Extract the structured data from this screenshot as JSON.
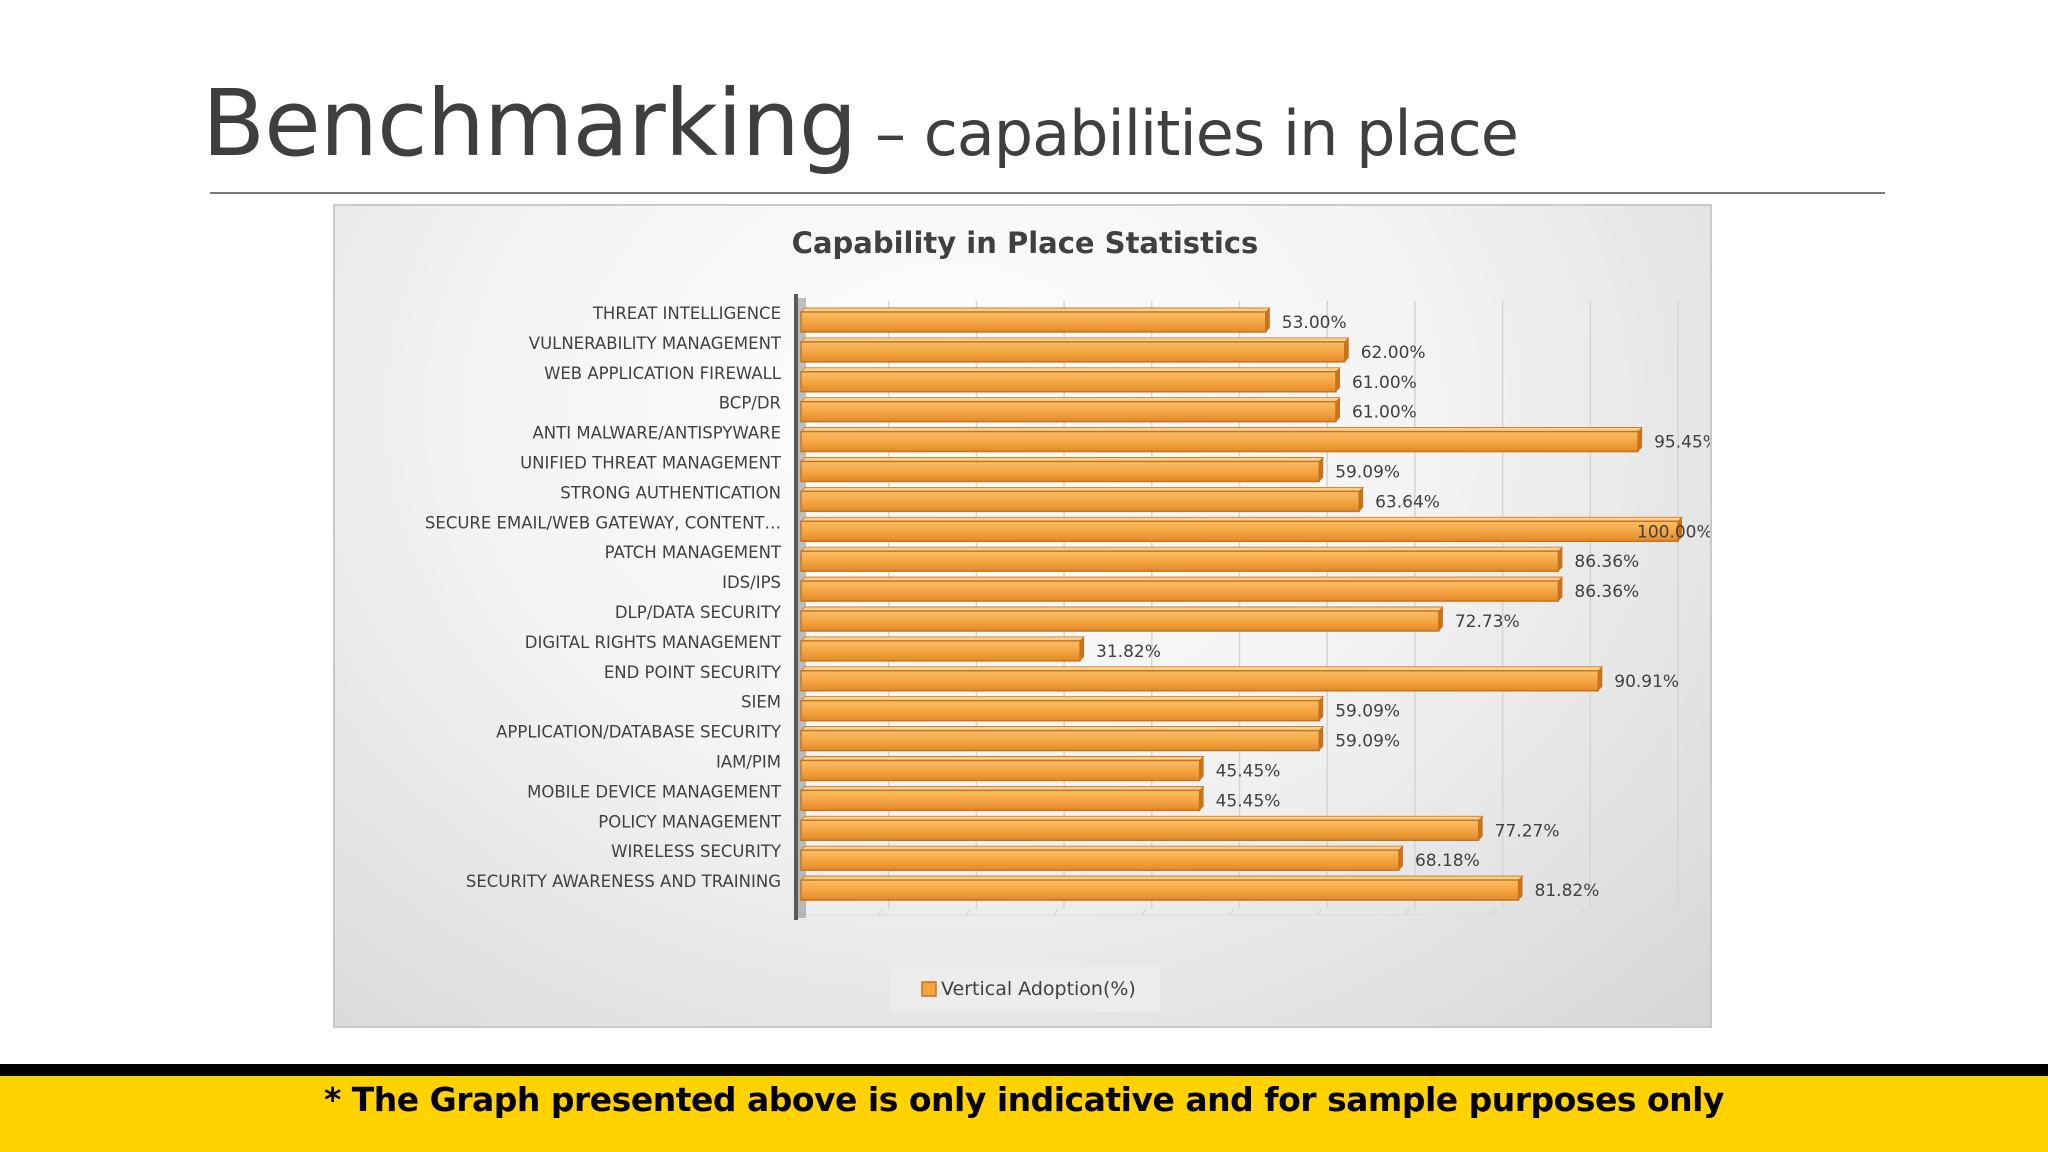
{
  "slide": {
    "title_main": "Benchmarking",
    "title_sub": " – capabilities in place",
    "footer_note": "* The Graph presented above is only indicative and for sample purposes only"
  },
  "colors": {
    "bar": "#f4a340",
    "bar_dark": "#c8731c",
    "axis": "#595959",
    "grid": "#d4d4d4",
    "footer": "#ffd200"
  },
  "chart_data": {
    "type": "bar",
    "orientation": "horizontal",
    "style": "3d",
    "title": "Capability in Place Statistics",
    "categories": [
      "THREAT INTELLIGENCE",
      "VULNERABILITY MANAGEMENT",
      "WEB APPLICATION FIREWALL",
      "BCP/DR",
      "ANTI MALWARE/ANTISPYWARE",
      "UNIFIED THREAT MANAGEMENT",
      "STRONG AUTHENTICATION",
      "SECURE EMAIL/WEB GATEWAY, CONTENT…",
      "PATCH MANAGEMENT",
      "IDS/IPS",
      "DLP/DATA SECURITY",
      "DIGITAL RIGHTS MANAGEMENT",
      "END POINT SECURITY",
      "SIEM",
      "APPLICATION/DATABASE SECURITY",
      "IAM/PIM",
      "MOBILE DEVICE MANAGEMENT",
      "POLICY MANAGEMENT",
      "WIRELESS SECURITY",
      "SECURITY AWARENESS AND TRAINING"
    ],
    "series": [
      {
        "name": "Vertical Adoption(%)",
        "values": [
          53.0,
          62.0,
          61.0,
          61.0,
          95.45,
          59.09,
          63.64,
          100.0,
          86.36,
          86.36,
          72.73,
          31.82,
          90.91,
          59.09,
          59.09,
          45.45,
          45.45,
          77.27,
          68.18,
          81.82
        ],
        "labels": [
          "53.00%",
          "62.00%",
          "61.00%",
          "61.00%",
          "95.45%",
          "59.09%",
          "63.64%",
          "100.00%",
          "86.36%",
          "86.36%",
          "72.73%",
          "31.82%",
          "90.91%",
          "59.09%",
          "59.09%",
          "45.45%",
          "45.45%",
          "77.27%",
          "68.18%",
          "81.82%"
        ]
      }
    ],
    "xlim": [
      0,
      100
    ],
    "gridlines": true,
    "legend_position": "bottom"
  }
}
